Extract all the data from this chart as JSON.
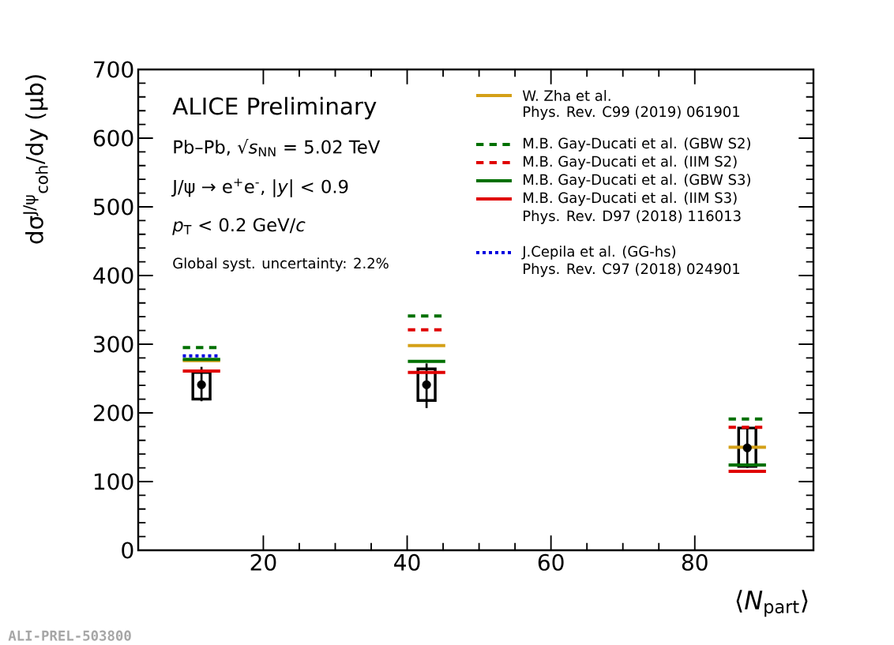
{
  "chart_data": {
    "type": "line",
    "xlabel": "⟨*N*$_{part}$⟩",
    "ylabel": "dσ$^{J/ψ}$$_{coh}$/dy (μb)",
    "xlim": [
      2.6,
      96.5
    ],
    "ylim": [
      0,
      700
    ],
    "xticks": [
      20,
      40,
      60,
      80
    ],
    "yticks": [
      0,
      100,
      200,
      300,
      400,
      500,
      600,
      700
    ],
    "legend": "top right",
    "series": [
      {
        "type": "bar",
        "color": "#000000",
        "x": [
          11.4,
          42.7,
          87.3
        ],
        "base": [
          220,
          218,
          122
        ],
        "values": [
          39,
          46,
          56
        ]
      },
      {
        "type": "scatter",
        "marker": "circle",
        "color": "#000000",
        "x": [
          11.4,
          42.7,
          87.3
        ],
        "values": [
          241,
          241,
          149
        ],
        "errors": [
          [
            217,
            267
          ],
          [
            207,
            272
          ],
          [
            120,
            180
          ]
        ]
      },
      {
        "name": "W. Zha et al.",
        "color": "#d4a017",
        "line_style": "solid",
        "x": [
          8.8,
          14.0
        ],
        "values": [
          276,
          276
        ]
      },
      {
        "color": "#d4a017",
        "line_style": "solid",
        "x": [
          40.1,
          45.3
        ],
        "values": [
          298,
          298
        ]
      },
      {
        "color": "#d4a017",
        "line_style": "solid",
        "x": [
          84.7,
          89.9
        ],
        "values": [
          150,
          150
        ]
      },
      {
        "name": "M.B. Gay-Ducati et al. (GBW S2)",
        "color": "#007000",
        "line_style": "dashed",
        "x": [
          8.8,
          14.0
        ],
        "values": [
          295,
          295
        ]
      },
      {
        "color": "#007000",
        "line_style": "dashed",
        "x": [
          40.1,
          45.3
        ],
        "values": [
          341,
          341
        ]
      },
      {
        "color": "#007000",
        "line_style": "dashed",
        "x": [
          84.7,
          89.9
        ],
        "values": [
          191,
          191
        ]
      },
      {
        "name": "M.B. Gay-Ducati et al. (IIM S2)",
        "color": "#e00000",
        "line_style": "dashed",
        "x": [
          40.1,
          45.3
        ],
        "values": [
          321,
          321
        ]
      },
      {
        "color": "#e00000",
        "line_style": "dashed",
        "x": [
          84.7,
          89.9
        ],
        "values": [
          179,
          179
        ]
      },
      {
        "name": "M.B. Gay-Ducati et al. (GBW S3)",
        "color": "#007000",
        "line_style": "solid",
        "x": [
          8.8,
          14.0
        ],
        "values": [
          278,
          278
        ]
      },
      {
        "color": "#007000",
        "line_style": "solid",
        "x": [
          40.1,
          45.3
        ],
        "values": [
          275,
          275
        ]
      },
      {
        "color": "#007000",
        "line_style": "solid",
        "x": [
          84.7,
          89.9
        ],
        "values": [
          124,
          124
        ]
      },
      {
        "name": "M.B. Gay-Ducati et al. (IIM S3)",
        "color": "#e00000",
        "line_style": "solid",
        "x": [
          8.8,
          14.0
        ],
        "values": [
          261,
          261
        ]
      },
      {
        "color": "#e00000",
        "line_style": "solid",
        "x": [
          40.1,
          45.3
        ],
        "values": [
          259,
          259
        ]
      },
      {
        "color": "#e00000",
        "line_style": "solid",
        "x": [
          84.7,
          89.9
        ],
        "values": [
          115,
          115
        ]
      },
      {
        "name": "J.Cepila et al. (GG-hs)",
        "color": "#0000e0",
        "line_style": "dotted",
        "x": [
          8.8,
          14.0
        ],
        "values": [
          283,
          283
        ]
      }
    ],
    "annotations": [
      "ALICE Preliminary",
      "Pb–Pb, √*s*$_{NN}$ = 5.02 TeV",
      "J/ψ → e$^{+}$e$^{-}$, |*y*| < 0.9",
      "*p*$_{T}$ < 0.2 GeV/*c*",
      "Global syst. uncertainty: 2.2%",
      "Phys. Rev. C99 (2019) 061901",
      "Phys. Rev. D97 (2018) 116013",
      "Phys. Rev. C97 (2018) 024901",
      "ALI-PREL-503800"
    ]
  }
}
